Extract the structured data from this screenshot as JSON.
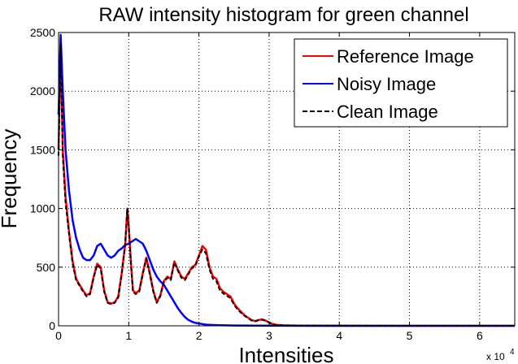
{
  "chart_data": {
    "type": "line",
    "title": "RAW intensity histogram for green channel",
    "xlabel": "Intensities",
    "ylabel": "Frequency",
    "x_exponent_label": "x 10",
    "x_exponent_power": "4",
    "xlim": [
      0,
      65000
    ],
    "ylim": [
      0,
      2500
    ],
    "x_ticks": [
      0,
      1,
      2,
      3,
      4,
      5,
      6
    ],
    "x_tick_multiplier": 10000,
    "y_ticks": [
      0,
      500,
      1000,
      1500,
      2000,
      2500
    ],
    "grid": true,
    "legend_position": "top-right",
    "series": [
      {
        "name": "Reference Image",
        "color": "#ff0000",
        "style": "solid",
        "x": [
          0,
          300,
          600,
          1000,
          1500,
          2000,
          2500,
          3000,
          3500,
          4000,
          4500,
          5000,
          5500,
          6000,
          6500,
          7000,
          7500,
          8000,
          8500,
          9000,
          9500,
          9800,
          10000,
          10300,
          10600,
          11000,
          11500,
          12000,
          12500,
          13000,
          13500,
          14000,
          14500,
          15000,
          15500,
          16000,
          16500,
          17000,
          17500,
          18000,
          18500,
          19000,
          19500,
          20000,
          20500,
          21000,
          21500,
          22000,
          22500,
          23000,
          23500,
          24000,
          24500,
          25000,
          25500,
          26000,
          26500,
          27000,
          27500,
          28000,
          28500,
          29000,
          29500,
          30000,
          30500,
          31000,
          32000,
          34000,
          40000,
          50000,
          60000,
          65000
        ],
        "values": [
          1500,
          2450,
          1500,
          1100,
          800,
          550,
          400,
          350,
          300,
          260,
          280,
          420,
          530,
          500,
          300,
          200,
          190,
          200,
          250,
          450,
          700,
          1000,
          850,
          550,
          300,
          280,
          300,
          450,
          580,
          450,
          300,
          200,
          260,
          380,
          420,
          400,
          550,
          480,
          420,
          400,
          450,
          500,
          520,
          600,
          680,
          650,
          500,
          420,
          400,
          320,
          290,
          270,
          250,
          190,
          150,
          120,
          90,
          70,
          50,
          40,
          50,
          55,
          45,
          30,
          15,
          8,
          4,
          2,
          1,
          0,
          0,
          0
        ]
      },
      {
        "name": "Noisy Image",
        "color": "#0000ff",
        "style": "solid",
        "x": [
          0,
          300,
          600,
          1000,
          1500,
          2000,
          2500,
          3000,
          3500,
          4000,
          4500,
          5000,
          5500,
          6000,
          6500,
          7000,
          7500,
          8000,
          8500,
          9000,
          9500,
          10000,
          10500,
          11000,
          11500,
          12000,
          12500,
          13000,
          13500,
          14000,
          14500,
          15000,
          15500,
          16000,
          16500,
          17000,
          17500,
          18000,
          18500,
          19000,
          19500,
          20000,
          20500,
          21000,
          22000,
          23000,
          25000,
          28000,
          32000,
          40000,
          50000,
          65000
        ],
        "values": [
          1800,
          2480,
          2000,
          1500,
          1150,
          900,
          750,
          650,
          580,
          560,
          560,
          600,
          680,
          700,
          650,
          600,
          580,
          600,
          640,
          660,
          690,
          700,
          720,
          740,
          720,
          700,
          640,
          560,
          480,
          420,
          380,
          350,
          300,
          250,
          200,
          150,
          110,
          75,
          50,
          35,
          25,
          20,
          15,
          10,
          7,
          5,
          3,
          2,
          1,
          0,
          0,
          0
        ]
      },
      {
        "name": "Clean Image",
        "color": "#000000",
        "style": "dashed",
        "x": [
          0,
          300,
          600,
          1000,
          1500,
          2000,
          2500,
          3000,
          3500,
          4000,
          4500,
          5000,
          5500,
          6000,
          6500,
          7000,
          7500,
          8000,
          8500,
          9000,
          9500,
          9800,
          10000,
          10300,
          10600,
          11000,
          11500,
          12000,
          12500,
          13000,
          13500,
          14000,
          14500,
          15000,
          15500,
          16000,
          16500,
          17000,
          17500,
          18000,
          18500,
          19000,
          19500,
          20000,
          20500,
          21000,
          21500,
          22000,
          22500,
          23000,
          23500,
          24000,
          24500,
          25000,
          25500,
          26000,
          26500,
          27000,
          27500,
          28000,
          28500,
          29000,
          29500,
          30000,
          30500,
          31000,
          32000,
          34000,
          40000,
          50000,
          60000,
          65000
        ],
        "values": [
          1450,
          2400,
          1450,
          1050,
          780,
          530,
          390,
          340,
          290,
          250,
          270,
          410,
          520,
          490,
          290,
          195,
          185,
          195,
          240,
          440,
          690,
          1000,
          840,
          540,
          290,
          270,
          290,
          440,
          570,
          440,
          290,
          195,
          250,
          370,
          410,
          390,
          540,
          470,
          410,
          390,
          440,
          490,
          510,
          590,
          650,
          620,
          480,
          400,
          380,
          300,
          275,
          255,
          235,
          180,
          140,
          110,
          85,
          65,
          45,
          38,
          48,
          52,
          42,
          28,
          14,
          7,
          3,
          2,
          1,
          0,
          0,
          0
        ]
      }
    ]
  }
}
